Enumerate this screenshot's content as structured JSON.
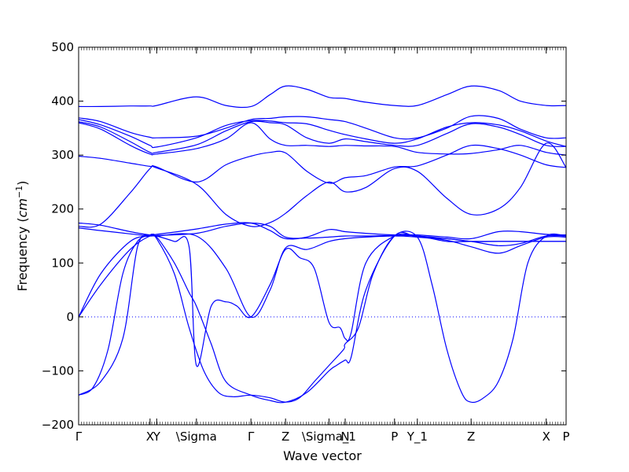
{
  "chart_data": {
    "type": "line",
    "title": "",
    "xlabel": "Wave vector",
    "ylabel_text": "Frequency (",
    "ylabel_unit": "cm",
    "ylabel_exp": "−1",
    "ylabel_close": ")",
    "ylim": [
      -200,
      500
    ],
    "yticks": [
      -200,
      -100,
      0,
      100,
      200,
      300,
      400,
      500
    ],
    "ytick_labels": [
      "−200",
      "−100",
      "0",
      "100",
      "200",
      "300",
      "400",
      "500"
    ],
    "grid": false,
    "zero_reference_line": true,
    "line_color": "#0000ff",
    "xlim": [
      0,
      6.62
    ],
    "high_symmetry_points": [
      {
        "label": "Γ",
        "x": 0.0
      },
      {
        "label": "X",
        "x": 0.97
      },
      {
        "label": "Y",
        "x": 1.06
      },
      {
        "label": "\\Sigma",
        "x": 1.6
      },
      {
        "label": "Γ",
        "x": 2.34
      },
      {
        "label": "Z",
        "x": 2.81
      },
      {
        "label": "\\Sigma_1",
        "x": 3.4
      },
      {
        "label": "N",
        "x": 3.62
      },
      {
        "label": "P",
        "x": 4.29
      },
      {
        "label": "Y_1",
        "x": 4.6
      },
      {
        "label": "Z",
        "x": 5.33
      },
      {
        "label": "X",
        "x": 6.35
      },
      {
        "label": "P",
        "x": 6.62
      }
    ],
    "series": [
      {
        "x": [
          0,
          0.3,
          0.7,
          0.97,
          1.06,
          1.6,
          2.0,
          2.34,
          2.6,
          2.81,
          3.1,
          3.4,
          3.62,
          3.9,
          4.29,
          4.6,
          5.0,
          5.33,
          5.7,
          6.0,
          6.35,
          6.62
        ],
        "y": [
          390,
          390,
          391,
          391,
          392,
          408,
          392,
          390,
          412,
          428,
          422,
          407,
          405,
          398,
          392,
          392,
          412,
          428,
          420,
          400,
          392,
          392
        ]
      },
      {
        "x": [
          0,
          0.3,
          0.7,
          0.97,
          1.06,
          1.6,
          2.0,
          2.34,
          2.6,
          2.81,
          3.1,
          3.4,
          3.62,
          3.9,
          4.29,
          4.6,
          5.0,
          5.33,
          5.7,
          6.0,
          6.35,
          6.62
        ],
        "y": [
          369,
          362,
          342,
          333,
          332,
          335,
          350,
          366,
          368,
          371,
          371,
          366,
          362,
          350,
          332,
          332,
          350,
          372,
          368,
          348,
          332,
          332
        ]
      },
      {
        "x": [
          0,
          0.3,
          0.7,
          0.97,
          1.06,
          1.6,
          2.0,
          2.34,
          2.6,
          2.81,
          3.1,
          3.4,
          3.62,
          3.9,
          4.29,
          4.6,
          5.0,
          5.33,
          5.7,
          6.0,
          6.35,
          6.62
        ],
        "y": [
          366,
          356,
          335,
          318,
          315,
          332,
          355,
          364,
          363,
          360,
          358,
          346,
          338,
          330,
          322,
          330,
          352,
          360,
          356,
          345,
          326,
          316
        ]
      },
      {
        "x": [
          0,
          0.3,
          0.7,
          0.97,
          1.06,
          1.6,
          2.0,
          2.34,
          2.6,
          2.81,
          3.1,
          3.4,
          3.62,
          3.9,
          4.29,
          4.6,
          5.0,
          5.33,
          5.7,
          6.0,
          6.35,
          6.62
        ],
        "y": [
          362,
          352,
          325,
          305,
          305,
          319,
          345,
          362,
          360,
          356,
          332,
          322,
          330,
          325,
          318,
          318,
          340,
          358,
          352,
          338,
          318,
          316
        ]
      },
      {
        "x": [
          0,
          0.3,
          0.7,
          0.97,
          1.06,
          1.6,
          2.0,
          2.34,
          2.6,
          2.81,
          3.1,
          3.4,
          3.62,
          3.9,
          4.29,
          4.6,
          5.0,
          5.33,
          5.7,
          6.0,
          6.35,
          6.62
        ],
        "y": [
          360,
          348,
          318,
          302,
          302,
          312,
          330,
          360,
          330,
          318,
          318,
          316,
          318,
          317,
          316,
          305,
          302,
          303,
          310,
          318,
          305,
          300
        ]
      },
      {
        "x": [
          0,
          0.3,
          0.7,
          0.97,
          1.06,
          1.6,
          2.0,
          2.34,
          2.6,
          2.81,
          3.1,
          3.4,
          3.62,
          3.9,
          4.29,
          4.6,
          5.0,
          5.33,
          5.7,
          6.0,
          6.35,
          6.62
        ],
        "y": [
          298,
          294,
          285,
          279,
          278,
          250,
          282,
          298,
          305,
          304,
          270,
          248,
          258,
          262,
          278,
          280,
          300,
          318,
          312,
          300,
          282,
          277
        ]
      },
      {
        "x": [
          0,
          0.3,
          0.7,
          0.97,
          1.06,
          1.6,
          2.0,
          2.34,
          2.6,
          2.81,
          3.1,
          3.4,
          3.62,
          3.9,
          4.29,
          4.6,
          5.0,
          5.33,
          5.7,
          6.0,
          6.35,
          6.62
        ],
        "y": [
          168,
          172,
          230,
          275,
          276,
          246,
          190,
          168,
          175,
          192,
          225,
          250,
          232,
          240,
          275,
          270,
          220,
          190,
          200,
          240,
          322,
          277
        ]
      },
      {
        "x": [
          0,
          0.3,
          0.7,
          0.97,
          1.06,
          1.6,
          2.0,
          2.34,
          2.6,
          2.81,
          3.1,
          3.4,
          3.62,
          3.9,
          4.29,
          4.6,
          5.0,
          5.33,
          5.7,
          6.0,
          6.35,
          6.62
        ],
        "y": [
          174,
          170,
          158,
          152,
          153,
          163,
          172,
          174,
          160,
          145,
          148,
          162,
          158,
          155,
          152,
          152,
          148,
          145,
          158,
          158,
          153,
          152
        ]
      },
      {
        "x": [
          0,
          0.3,
          0.7,
          0.97,
          1.06,
          1.6,
          2.0,
          2.34,
          2.6,
          2.81,
          3.1,
          3.4,
          3.62,
          3.9,
          4.29,
          4.6,
          5.0,
          5.33,
          5.7,
          6.0,
          6.35,
          6.62
        ],
        "y": [
          165,
          160,
          154,
          150,
          151,
          155,
          168,
          174,
          168,
          148,
          146,
          148,
          150,
          150,
          151,
          150,
          145,
          140,
          132,
          136,
          150,
          150
        ]
      },
      {
        "x": [
          0,
          0.3,
          0.7,
          0.97,
          1.06,
          1.6,
          2.0,
          2.34,
          2.6,
          2.81,
          3.1,
          3.4,
          3.62,
          3.9,
          4.29,
          4.6,
          5.0,
          5.33,
          5.7,
          6.0,
          6.35,
          6.62
        ],
        "y": [
          0,
          80,
          140,
          150,
          150,
          150,
          90,
          0,
          50,
          128,
          125,
          140,
          145,
          148,
          150,
          148,
          142,
          130,
          118,
          132,
          148,
          148
        ]
      },
      {
        "x": [
          0,
          0.3,
          0.7,
          0.97,
          1.06,
          1.3,
          1.5,
          1.6,
          1.8,
          2.0,
          2.34,
          2.6,
          2.81,
          3.1,
          3.4,
          3.5,
          3.62,
          3.7,
          3.9,
          4.29,
          4.6,
          5.0,
          5.33,
          5.7,
          6.0,
          6.35,
          6.62
        ],
        "y": [
          0,
          60,
          125,
          150,
          148,
          100,
          45,
          20,
          -50,
          -120,
          -145,
          -155,
          -158,
          -140,
          -100,
          -90,
          -80,
          -75,
          50,
          150,
          148,
          145,
          140,
          140,
          140,
          140,
          140
        ]
      },
      {
        "x": [
          0,
          0.3,
          0.6,
          0.8,
          0.97,
          1.06,
          1.3,
          1.5,
          1.6,
          1.8,
          2.0,
          2.15,
          2.34,
          2.6,
          2.81,
          3.0,
          3.2,
          3.4,
          3.55,
          3.62,
          3.7,
          3.9,
          4.29,
          4.6,
          5.0,
          5.33,
          5.7,
          6.0,
          6.35,
          6.62
        ],
        "y": [
          -145,
          -120,
          -40,
          130,
          152,
          150,
          140,
          130,
          -90,
          20,
          28,
          20,
          0,
          60,
          125,
          110,
          90,
          -10,
          -20,
          -40,
          -30,
          100,
          150,
          150,
          140,
          140,
          140,
          140,
          140,
          140
        ]
      },
      {
        "x": [
          0,
          0.2,
          0.4,
          0.6,
          0.8,
          0.97,
          1.06,
          1.3,
          1.5,
          1.7,
          1.9,
          2.1,
          2.34,
          2.6,
          2.81,
          3.0,
          3.2,
          3.4,
          3.6,
          3.62,
          3.8,
          4.0,
          4.29,
          4.6,
          4.8,
          5.0,
          5.2,
          5.33,
          5.5,
          5.7,
          5.9,
          6.1,
          6.35,
          6.62
        ],
        "y": [
          -145,
          -130,
          -60,
          80,
          140,
          150,
          145,
          80,
          -20,
          -100,
          -140,
          -148,
          -145,
          -150,
          -158,
          -150,
          -120,
          -90,
          -60,
          -50,
          -20,
          80,
          150,
          148,
          60,
          -60,
          -140,
          -158,
          -150,
          -120,
          -40,
          100,
          150,
          150
        ]
      }
    ]
  }
}
